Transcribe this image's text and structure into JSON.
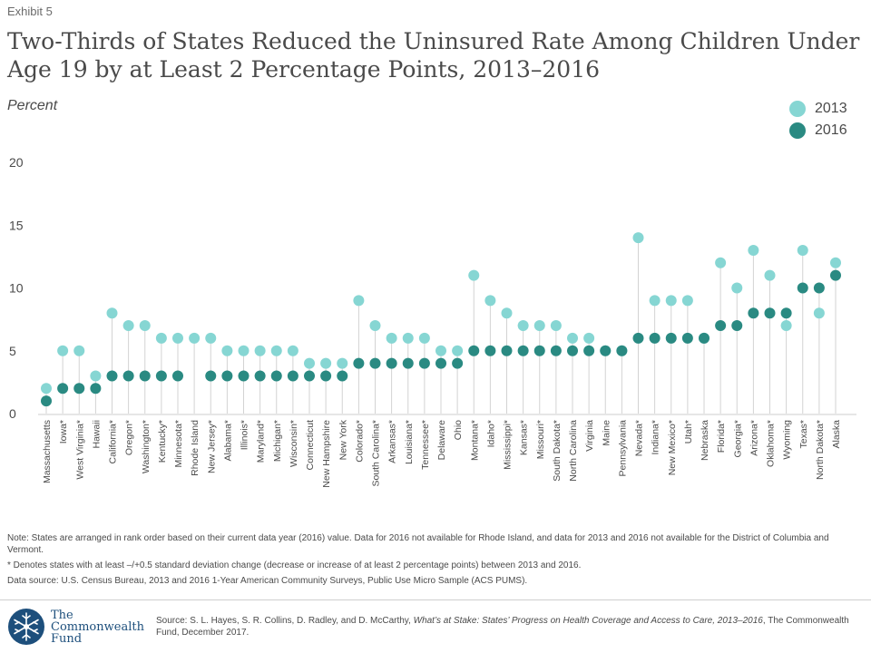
{
  "exhibit": "Exhibit 5",
  "title": "Two-Thirds of States Reduced the Uninsured Rate Among Children Under Age 19 by at Least 2 Percentage Points, 2013–2016",
  "unit_label": "Percent",
  "colors": {
    "y2013": "#86d6d3",
    "y2016": "#2a8a82",
    "stem": "#d3d3d3",
    "axis_text": "#4a4a4a"
  },
  "chart_data": {
    "type": "scatter",
    "ylim": [
      0,
      20
    ],
    "yticks": [
      0,
      5,
      10,
      15,
      20
    ],
    "legend_position": "top-right",
    "categories": [
      "Massachusetts",
      "Iowa*",
      "West Virginia*",
      "Hawaii",
      "California*",
      "Oregon*",
      "Washington*",
      "Kentucky*",
      "Minnesota*",
      "Rhode Island",
      "New Jersey*",
      "Alabama*",
      "Illinois*",
      "Maryland*",
      "Michigan*",
      "Wisconsin*",
      "Connecticut",
      "New Hampshire",
      "New York",
      "Colorado*",
      "South Carolina*",
      "Arkansas*",
      "Louisiana*",
      "Tennessee*",
      "Delaware",
      "Ohio",
      "Montana*",
      "Idaho*",
      "Mississippi*",
      "Kansas*",
      "Missouri*",
      "South Dakota*",
      "North Carolina",
      "Virginia",
      "Maine",
      "Pennsylvania",
      "Nevada*",
      "Indiana*",
      "New Mexico*",
      "Utah*",
      "Nebraska",
      "Florida*",
      "Georgia*",
      "Arizona*",
      "Oklahoma*",
      "Wyoming",
      "Texas*",
      "North Dakota*",
      "Alaska"
    ],
    "series": [
      {
        "name": "2013",
        "values": [
          2,
          5,
          5,
          3,
          8,
          7,
          7,
          6,
          6,
          6,
          6,
          5,
          5,
          5,
          5,
          5,
          4,
          4,
          4,
          9,
          7,
          6,
          6,
          6,
          5,
          5,
          11,
          9,
          8,
          7,
          7,
          7,
          6,
          6,
          5,
          5,
          14,
          9,
          9,
          9,
          6,
          12,
          10,
          13,
          11,
          7,
          13,
          8,
          12
        ]
      },
      {
        "name": "2016",
        "values": [
          1,
          2,
          2,
          2,
          3,
          3,
          3,
          3,
          3,
          null,
          3,
          3,
          3,
          3,
          3,
          3,
          3,
          3,
          3,
          4,
          4,
          4,
          4,
          4,
          4,
          4,
          5,
          5,
          5,
          5,
          5,
          5,
          5,
          5,
          5,
          5,
          6,
          6,
          6,
          6,
          6,
          7,
          7,
          8,
          8,
          8,
          10,
          10,
          11
        ]
      }
    ]
  },
  "notes": {
    "note": "Note: States are arranged in rank order based on their current data year (2016) value. Data for 2016 not available for Rhode Island, and data for 2013 and 2016 not available for the District of Columbia and Vermont.",
    "asterisk": "* Denotes  states with at least –/+0.5 standard deviation change (decrease or increase of at least 2 percentage points) between 2013 and 2016.",
    "data_source": "Data source: U.S. Census Bureau, 2013  and 2016  1-Year American Community Surveys, Public Use Micro Sample (ACS PUMS)."
  },
  "logo": {
    "line1": "The",
    "line2": "Commonwealth",
    "line3": "Fund"
  },
  "source": {
    "prefix": "Source: S. L. Hayes, S. R. Collins, D. Radley, and D. McCarthy, ",
    "title": "What’s at Stake: States’ Progress on Health Coverage and Access to Care, 2013–2016",
    "suffix": ", The Commonwealth Fund, December 2017."
  }
}
